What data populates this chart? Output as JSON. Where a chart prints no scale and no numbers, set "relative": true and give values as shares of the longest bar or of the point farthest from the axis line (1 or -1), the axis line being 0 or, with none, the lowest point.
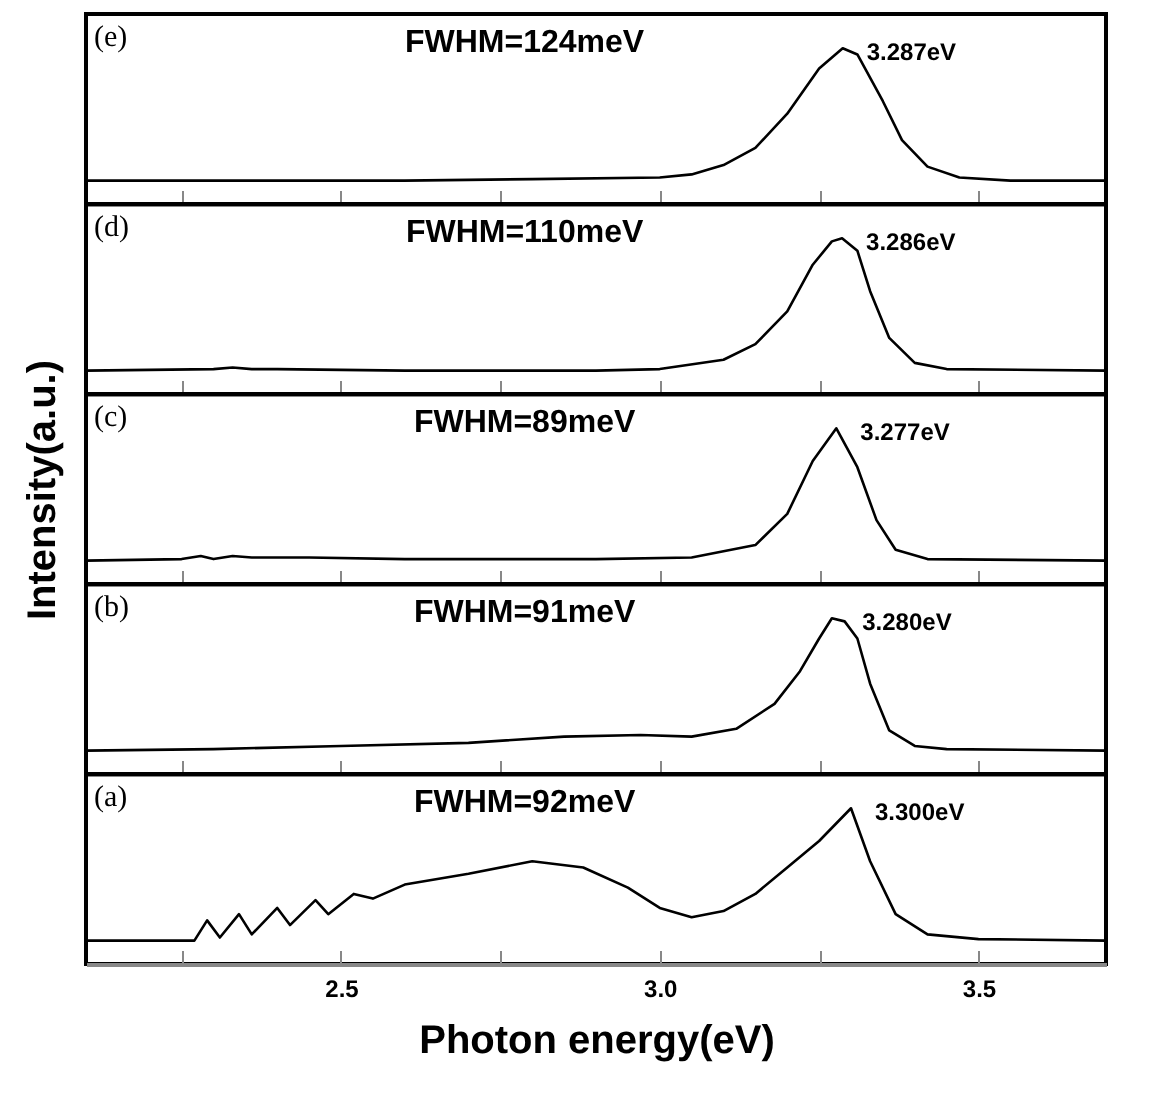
{
  "chart_data": [
    {
      "type": "line",
      "relative": true,
      "tick_labels": false,
      "xlim": [
        2.1,
        3.7
      ],
      "xticks": [
        {
          "value": 2.25,
          "label": null
        },
        2.5,
        {
          "value": 2.75,
          "label": null
        },
        3.0,
        {
          "value": 3.25,
          "label": null
        },
        3.5
      ],
      "annotations": [
        "(e)",
        "FWHM=124meV",
        {
          "text": "3.287eV",
          "x": 3.287,
          "y": 1
        }
      ],
      "series": [
        {
          "color": "#000000",
          "x": [
            2.1,
            2.6,
            2.8,
            3.0,
            3.05,
            3.1,
            3.15,
            3.2,
            3.25,
            3.287,
            3.31,
            3.35,
            3.38,
            3.42,
            3.47,
            3.55,
            3.7
          ],
          "values": [
            0.15,
            0.15,
            0.16,
            0.17,
            0.19,
            0.25,
            0.36,
            0.58,
            0.87,
            1,
            0.96,
            0.66,
            0.41,
            0.24,
            0.17,
            0.15,
            0.15
          ]
        }
      ]
    },
    {
      "type": "line",
      "relative": true,
      "tick_labels": false,
      "xlim": [
        2.1,
        3.7
      ],
      "xticks": [
        {
          "value": 2.25,
          "label": null
        },
        2.5,
        {
          "value": 2.75,
          "label": null
        },
        3.0,
        {
          "value": 3.25,
          "label": null
        },
        3.5
      ],
      "annotations": [
        "(d)",
        "FWHM=110meV",
        {
          "text": "3.286eV",
          "x": 3.286,
          "y": 1
        }
      ],
      "series": [
        {
          "color": "#000000",
          "x": [
            2.1,
            2.3,
            2.33,
            2.36,
            2.4,
            2.6,
            2.9,
            3.0,
            3.1,
            3.15,
            3.2,
            3.24,
            3.27,
            3.286,
            3.31,
            3.33,
            3.36,
            3.4,
            3.45,
            3.7
          ],
          "values": [
            0.15,
            0.16,
            0.17,
            0.16,
            0.16,
            0.15,
            0.15,
            0.16,
            0.22,
            0.32,
            0.53,
            0.83,
            0.98,
            1,
            0.92,
            0.66,
            0.36,
            0.2,
            0.16,
            0.15
          ]
        }
      ]
    },
    {
      "type": "line",
      "relative": true,
      "tick_labels": false,
      "xlim": [
        2.1,
        3.7
      ],
      "ylabel": "Intensity(a.u.)",
      "xticks": [
        {
          "value": 2.25,
          "label": null
        },
        2.5,
        {
          "value": 2.75,
          "label": null
        },
        3.0,
        {
          "value": 3.25,
          "label": null
        },
        3.5
      ],
      "annotations": [
        "(c)",
        "FWHM=89meV",
        {
          "text": "3.277eV",
          "x": 3.277,
          "y": 1
        }
      ],
      "series": [
        {
          "color": "#000000",
          "x": [
            2.1,
            2.25,
            2.28,
            2.3,
            2.33,
            2.36,
            2.45,
            2.6,
            2.9,
            3.05,
            3.15,
            3.2,
            3.24,
            3.277,
            3.31,
            3.34,
            3.37,
            3.42,
            3.7
          ],
          "values": [
            0.15,
            0.16,
            0.18,
            0.16,
            0.18,
            0.17,
            0.17,
            0.16,
            0.16,
            0.17,
            0.25,
            0.45,
            0.79,
            1,
            0.75,
            0.41,
            0.22,
            0.16,
            0.15
          ]
        }
      ]
    },
    {
      "type": "line",
      "relative": true,
      "tick_labels": false,
      "xlim": [
        2.1,
        3.7
      ],
      "xticks": [
        {
          "value": 2.25,
          "label": null
        },
        2.5,
        {
          "value": 2.75,
          "label": null
        },
        3.0,
        {
          "value": 3.25,
          "label": null
        },
        3.5
      ],
      "annotations": [
        "(b)",
        "FWHM=91meV",
        {
          "text": "3.280eV",
          "x": 3.28,
          "y": 1
        }
      ],
      "series": [
        {
          "color": "#000000",
          "x": [
            2.1,
            2.3,
            2.5,
            2.7,
            2.85,
            2.97,
            3.05,
            3.12,
            3.18,
            3.22,
            3.25,
            3.27,
            3.29,
            3.31,
            3.33,
            3.36,
            3.4,
            3.45,
            3.7
          ],
          "values": [
            0.15,
            0.16,
            0.18,
            0.2,
            0.24,
            0.25,
            0.24,
            0.29,
            0.45,
            0.66,
            0.87,
            1,
            0.98,
            0.87,
            0.58,
            0.28,
            0.18,
            0.16,
            0.15
          ]
        }
      ]
    },
    {
      "type": "line",
      "relative": true,
      "tick_labels": "x",
      "xlim": [
        2.1,
        3.7
      ],
      "xlabel": "Photon energy(eV)",
      "xticks": [
        {
          "value": 2.25,
          "label": null
        },
        2.5,
        {
          "value": 2.75,
          "label": null
        },
        {
          "value": 3.0,
          "label": "3.0"
        },
        {
          "value": 3.25,
          "label": null
        },
        3.5
      ],
      "annotations": [
        "(a)",
        "FWHM=92meV",
        {
          "text": "3.300eV",
          "x": 3.3,
          "y": 1
        }
      ],
      "series": [
        {
          "color": "#000000",
          "x": [
            2.1,
            2.27,
            2.29,
            2.31,
            2.34,
            2.36,
            2.4,
            2.42,
            2.46,
            2.48,
            2.52,
            2.55,
            2.6,
            2.7,
            2.8,
            2.88,
            2.95,
            3.0,
            3.05,
            3.1,
            3.15,
            3.2,
            3.25,
            3.3,
            3.33,
            3.37,
            3.42,
            3.5,
            3.7
          ],
          "values": [
            0.15,
            0.15,
            0.28,
            0.17,
            0.32,
            0.19,
            0.36,
            0.25,
            0.41,
            0.32,
            0.45,
            0.42,
            0.51,
            0.58,
            0.66,
            0.62,
            0.49,
            0.36,
            0.3,
            0.34,
            0.45,
            0.62,
            0.79,
            1,
            0.66,
            0.32,
            0.19,
            0.16,
            0.15
          ]
        }
      ]
    }
  ]
}
